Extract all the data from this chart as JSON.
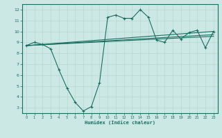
{
  "xlabel": "Humidex (Indice chaleur)",
  "ylabel": "",
  "bg_color": "#cce8e4",
  "line_color": "#1a6e60",
  "xlim": [
    -0.5,
    23.5
  ],
  "ylim": [
    2.5,
    12.5
  ],
  "xticks": [
    0,
    1,
    2,
    3,
    4,
    5,
    6,
    7,
    8,
    9,
    10,
    11,
    12,
    13,
    14,
    15,
    16,
    17,
    18,
    19,
    20,
    21,
    22,
    23
  ],
  "yticks": [
    3,
    4,
    5,
    6,
    7,
    8,
    9,
    10,
    11,
    12
  ],
  "line1_x": [
    0,
    1,
    2,
    3,
    4,
    5,
    6,
    7,
    8,
    9,
    10,
    11,
    12,
    13,
    14,
    15,
    16,
    17,
    18,
    19,
    20,
    21,
    22,
    23
  ],
  "line1_y": [
    8.7,
    9.0,
    8.8,
    8.4,
    6.5,
    4.8,
    3.5,
    2.7,
    3.1,
    5.3,
    11.3,
    11.5,
    11.2,
    11.2,
    12.0,
    11.3,
    9.2,
    9.0,
    10.1,
    9.3,
    9.9,
    10.1,
    8.5,
    10.0
  ],
  "line2_x": [
    0,
    23
  ],
  "line2_y": [
    8.7,
    10.0
  ],
  "line3_x": [
    0,
    23
  ],
  "line3_y": [
    8.7,
    9.7
  ],
  "line4_x": [
    0,
    23
  ],
  "line4_y": [
    8.7,
    9.55
  ]
}
